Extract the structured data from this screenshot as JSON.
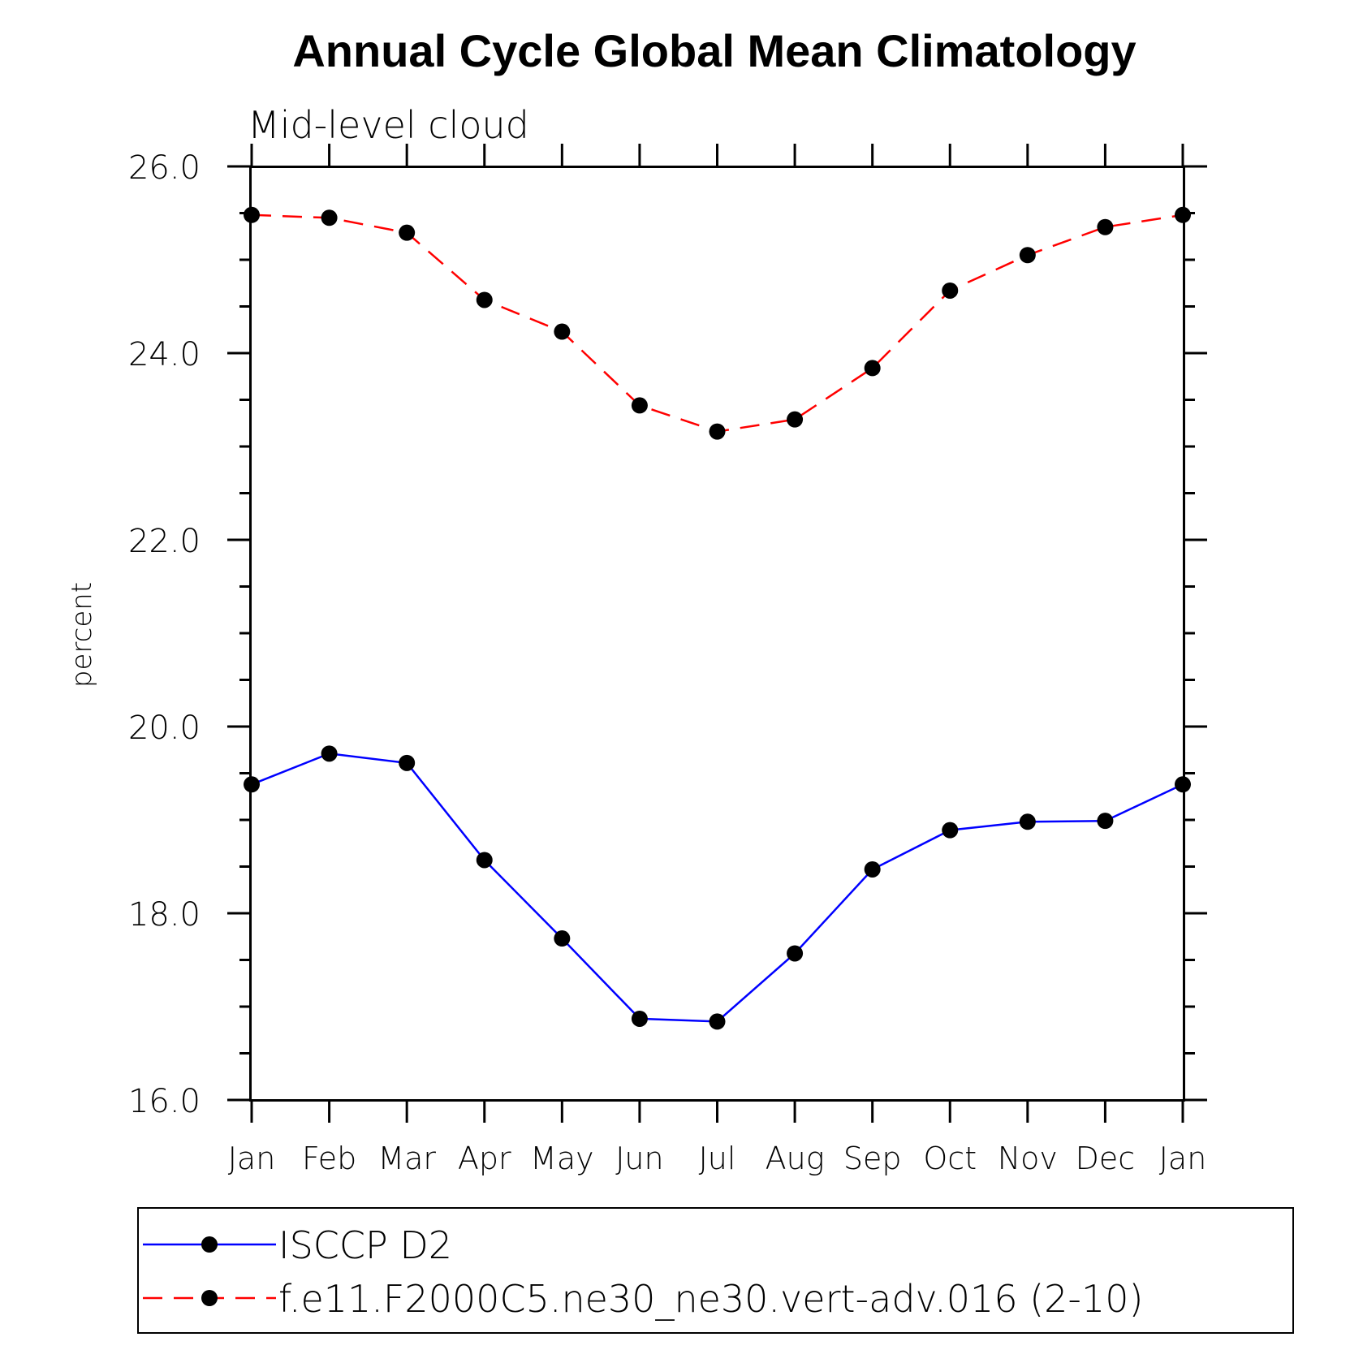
{
  "chart_data": {
    "type": "line",
    "title": "Annual Cycle Global Mean Climatology",
    "subtitle": "Mid-level cloud",
    "xlabel": "",
    "ylabel": "percent",
    "categories": [
      "Jan",
      "Feb",
      "Mar",
      "Apr",
      "May",
      "Jun",
      "Jul",
      "Aug",
      "Sep",
      "Oct",
      "Nov",
      "Dec",
      "Jan"
    ],
    "ylim": [
      16.0,
      26.0
    ],
    "y_ticks": [
      "16.0",
      "18.0",
      "20.0",
      "22.0",
      "24.0",
      "26.0"
    ],
    "y_minor_step": 0.5,
    "grid": false,
    "legend_position": "bottom",
    "series": [
      {
        "name": "ISCCP D2",
        "color": "#0000ff",
        "line_style": "solid",
        "marker": "filled-circle",
        "values": [
          19.38,
          19.71,
          19.61,
          18.57,
          17.73,
          16.87,
          16.84,
          17.57,
          18.47,
          18.89,
          18.98,
          18.99,
          19.38
        ]
      },
      {
        "name": "f.e11.F2000C5.ne30_ne30.vert-adv.016 (2-10)",
        "color": "#ff0000",
        "line_style": "dashed",
        "marker": "filled-circle",
        "values": [
          25.48,
          25.45,
          25.29,
          24.57,
          24.23,
          23.44,
          23.16,
          23.29,
          23.84,
          24.67,
          25.05,
          25.35,
          25.48
        ]
      }
    ]
  }
}
